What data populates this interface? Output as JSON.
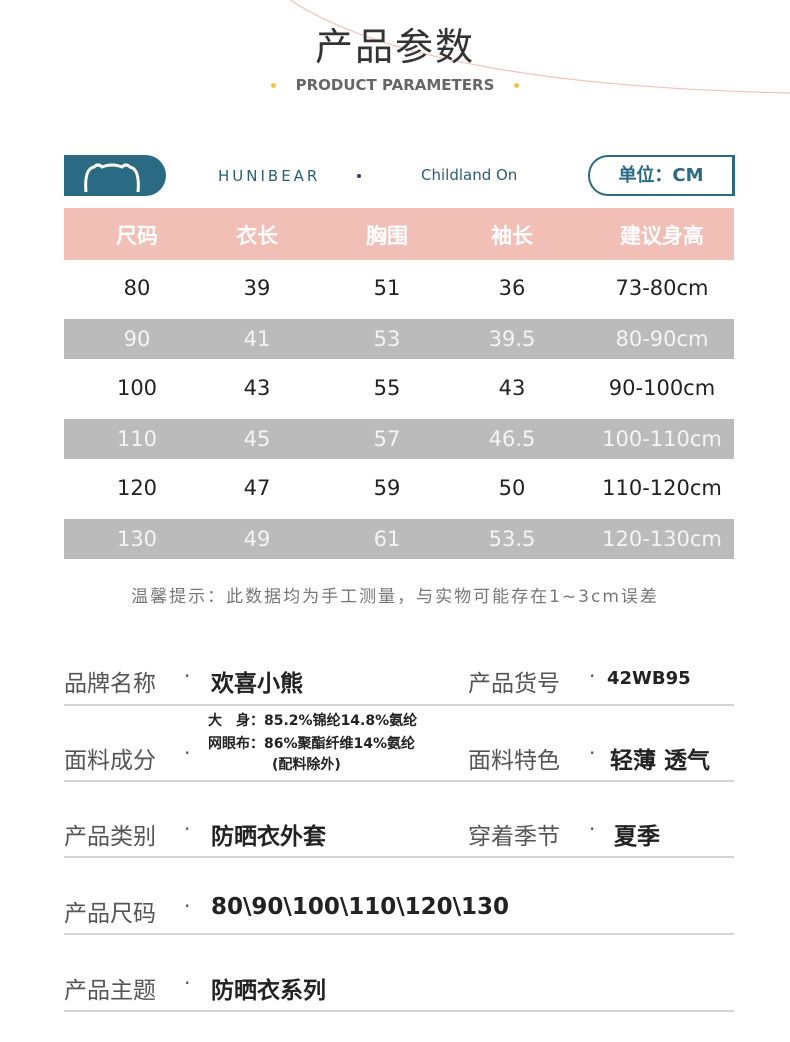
{
  "header": {
    "title": "产品参数",
    "subtitle": "PRODUCT PARAMETERS"
  },
  "brandbar": {
    "brand": "HUNIBEAR",
    "slogan": "Childland On",
    "unit": "单位：CM",
    "logo_icon": "bear-ears-icon"
  },
  "colors": {
    "accent": "#2a6a82",
    "header_bg": "#f2bfb6",
    "stripe": "#bbbbbb",
    "dot": "#f5c342"
  },
  "table": {
    "columns": [
      "尺码",
      "衣长",
      "胸围",
      "袖长",
      "建议身高"
    ],
    "rows": [
      [
        "80",
        "39",
        "51",
        "36",
        "73-80cm"
      ],
      [
        "90",
        "41",
        "53",
        "39.5",
        "80-90cm"
      ],
      [
        "100",
        "43",
        "55",
        "43",
        "90-100cm"
      ],
      [
        "110",
        "45",
        "57",
        "46.5",
        "100-110cm"
      ],
      [
        "120",
        "47",
        "59",
        "50",
        "110-120cm"
      ],
      [
        "130",
        "49",
        "61",
        "53.5",
        "120-130cm"
      ]
    ]
  },
  "note": "温馨提示：此数据均为手工测量，与实物可能存在1~3cm误差",
  "info": {
    "brand_label": "品牌名称",
    "brand_value": "欢喜小熊",
    "code_label": "产品货号",
    "code_value": "42WB95",
    "fabric_label": "面料成分",
    "fabric_lines": [
      "大　身：85.2%锦纶14.8%氨纶",
      "网眼布：86%聚酯纤维14%氨纶",
      "(配料除外)"
    ],
    "feature_label": "面料特色",
    "feature_value": "轻薄 透气",
    "category_label": "产品类别",
    "category_value": "防晒衣外套",
    "season_label": "穿着季节",
    "season_value": "夏季",
    "size_label": "产品尺码",
    "size_value": "80\\90\\100\\110\\120\\130",
    "theme_label": "产品主题",
    "theme_value": "防晒衣系列",
    "separator": "·"
  }
}
